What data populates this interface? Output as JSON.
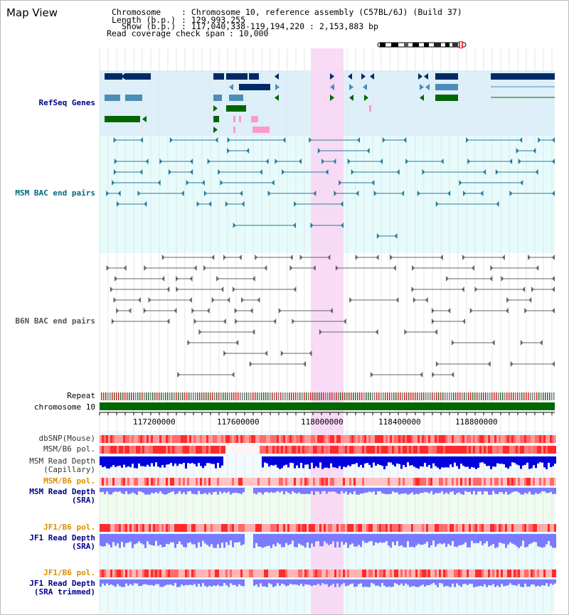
{
  "page": {
    "title": "Map View"
  },
  "header": {
    "chromosome_label": "Chromosome",
    "chromosome_value": ": Chromosome 10, reference assembly (C57BL/6J) (Build 37)",
    "length_label": "Length (b.p.)",
    "length_value": ": 129,993,255",
    "show_label": "Show (b.p.)",
    "show_value": ": 117,040,338-119,194,220 : 2,153,883 bp",
    "coverage_label": "Read coverage check span",
    "coverage_value": ": 10,000"
  },
  "tracks": {
    "refseq": "RefSeq Genes",
    "msm_bac": "MSM BAC end pairs",
    "b6n_bac": "B6N BAC end pairs",
    "repeat": "Repeat",
    "chromosome": "chromosome 10",
    "dbsnp": "dbSNP(Mouse)",
    "msm_pol": "MSM/B6 pol.",
    "msm_depth_cap_1": "MSM Read Depth",
    "msm_depth_cap_2": "(Capillary)",
    "msm_pol_sra": "MSM/B6 pol.",
    "msm_depth_sra_1": "MSM Read Depth",
    "msm_depth_sra_2": "(SRA)",
    "jf1_pol": "JF1/B6 pol.",
    "jf1_depth_1": "JF1 Read Depth",
    "jf1_depth_2": "(SRA)",
    "jf1_pol_trim": "JF1/B6 pol.",
    "jf1_depth_trim_1": "JF1 Read Depth",
    "jf1_depth_trim_2": "(SRA trimmed)"
  },
  "axis": {
    "ticks": [
      "117200000",
      "117600000",
      "118000000",
      "118400000",
      "118800000"
    ]
  },
  "colors": {
    "refseq_bg": "#ddf0fa",
    "bac_bg": "#e6fbfb",
    "highlight": "#f9d5f3",
    "navy": "#002b66",
    "steel": "#4a8db8",
    "green": "#006600",
    "pink": "#ff99cc",
    "label_navy": "#00008b",
    "label_teal": "#006a80",
    "label_gray": "#555555",
    "label_orange": "#d88e00",
    "depth_blue": "#0000dd",
    "depth_light": "#7a7aff"
  }
}
